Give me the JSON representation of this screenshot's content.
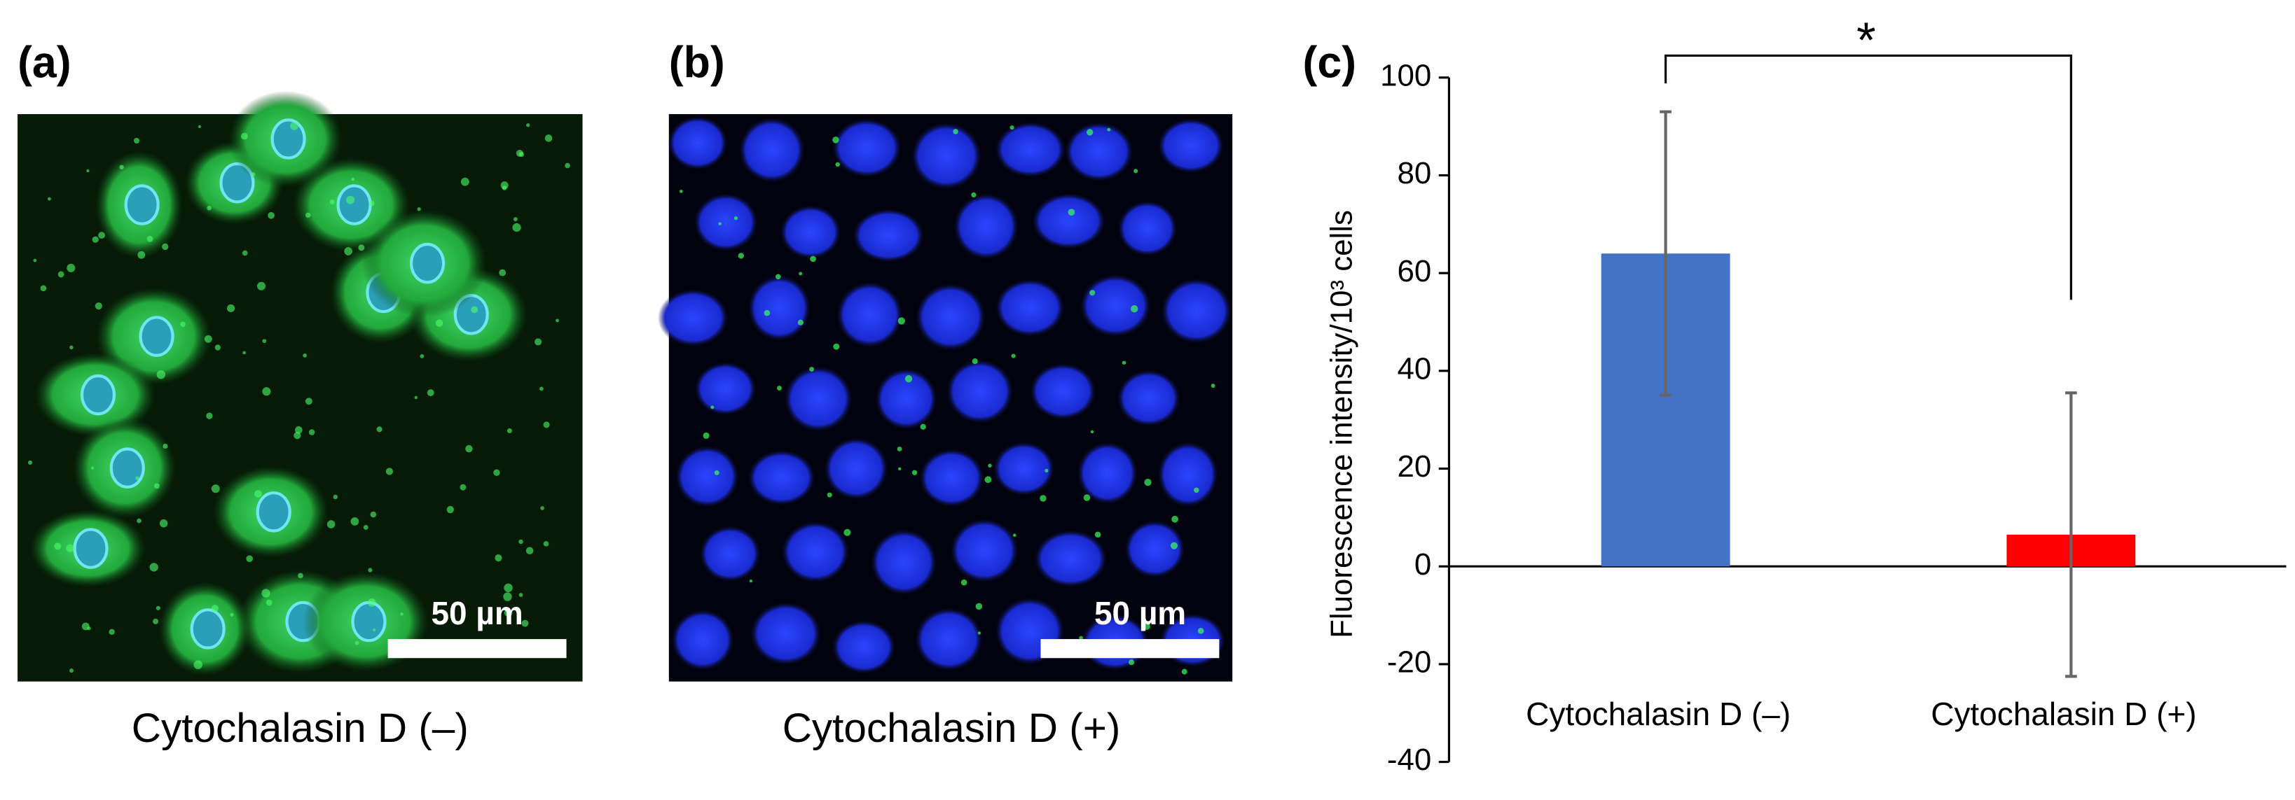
{
  "panels": [
    {
      "label": "(a)",
      "scale_bar": "50 µm",
      "caption": "Cytochalasin D (–)"
    },
    {
      "label": "(b)",
      "scale_bar": "50 µm",
      "caption": "Cytochalasin D (+)"
    }
  ],
  "chart_data": {
    "type": "bar",
    "panel_label": "(c)",
    "ylabel": "Fluorescence intensity/10³ cells",
    "categories": [
      "Cytochalasin D (–)",
      "Cytochalasin D (+)"
    ],
    "values": [
      64,
      6.5
    ],
    "errors": [
      29,
      29
    ],
    "colors": [
      "#4472c4",
      "#ff0000"
    ],
    "ylim": [
      -40,
      100
    ],
    "yticks": [
      -40,
      -20,
      0,
      20,
      40,
      60,
      80,
      100
    ],
    "annotation": "*"
  }
}
